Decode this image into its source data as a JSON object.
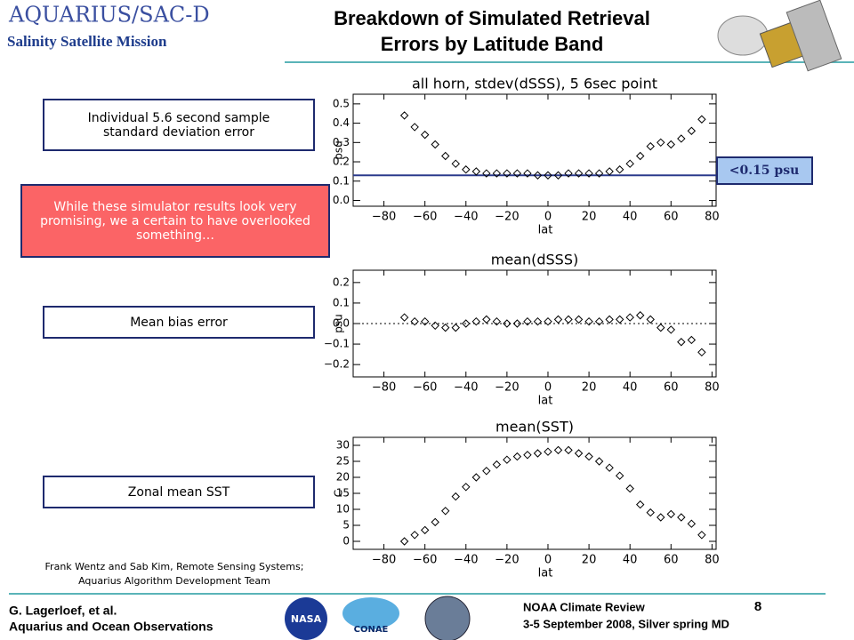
{
  "header": {
    "logo": "AQUARIUS/SAC-D",
    "mission": "Salinity Satellite Mission",
    "title": [
      "Breakdown of Simulated Retrieval",
      "Errors by Latitude Band"
    ]
  },
  "boxes": [
    "Individual 5.6 second sample standard deviation error",
    "While these simulator results look very promising, we a certain to have overlooked something…",
    "Mean bias error",
    "Zonal mean SST"
  ],
  "credit": [
    "Frank Wentz and Sab Kim, Remote Sensing Systems;",
    "Aquarius Algorithm Development Team"
  ],
  "footer": {
    "author": [
      "G. Lagerloef, et al.",
      "Aquarius and Ocean Observations"
    ],
    "event": [
      "NOAA Climate Review",
      "3-5 September 2008, Silver spring MD"
    ],
    "page": "8",
    "logos": [
      "NASA",
      "CONAE"
    ]
  },
  "chart_data": [
    {
      "type": "scatter",
      "title": "all horn, stdev(dSSS), 5 6sec point",
      "xlabel": "lat",
      "ylabel": "psu",
      "x": [
        -70,
        -65,
        -60,
        -55,
        -50,
        -45,
        -40,
        -35,
        -30,
        -25,
        -20,
        -15,
        -10,
        -5,
        0,
        5,
        10,
        15,
        20,
        25,
        30,
        35,
        40,
        45,
        50,
        55,
        60,
        65,
        70,
        75
      ],
      "values": [
        0.44,
        0.38,
        0.34,
        0.29,
        0.23,
        0.19,
        0.16,
        0.15,
        0.14,
        0.14,
        0.14,
        0.14,
        0.14,
        0.13,
        0.13,
        0.13,
        0.14,
        0.14,
        0.14,
        0.14,
        0.15,
        0.16,
        0.19,
        0.23,
        0.28,
        0.3,
        0.29,
        0.32,
        0.36,
        0.42
      ],
      "xlim": [
        -95,
        82
      ],
      "xticks": [
        {
          "value": -80,
          "label": "−80"
        },
        {
          "value": -60,
          "label": "−60"
        },
        {
          "value": -40,
          "label": "−40"
        },
        {
          "value": -20,
          "label": "−20"
        },
        0,
        20,
        40,
        60,
        80
      ],
      "ylim": [
        -0.03,
        0.55
      ],
      "yticks": [
        {
          "value": 0,
          "label": "0.0"
        },
        0.1,
        0.2,
        0.3,
        0.4,
        0.5
      ],
      "reference_line": {
        "value": 0.13,
        "color": "#2b3a8c",
        "style": "solid"
      },
      "annotation": "<0.15 psu"
    },
    {
      "type": "scatter",
      "title": "mean(dSSS)",
      "xlabel": "lat",
      "ylabel": "psu",
      "x": [
        -70,
        -65,
        -60,
        -55,
        -50,
        -45,
        -40,
        -35,
        -30,
        -25,
        -20,
        -15,
        -10,
        -5,
        0,
        5,
        10,
        15,
        20,
        25,
        30,
        35,
        40,
        45,
        50,
        55,
        60,
        65,
        70,
        75
      ],
      "values": [
        0.03,
        0.01,
        0.01,
        -0.01,
        -0.02,
        -0.02,
        0.0,
        0.01,
        0.02,
        0.01,
        0.0,
        0.0,
        0.01,
        0.01,
        0.01,
        0.02,
        0.02,
        0.02,
        0.01,
        0.01,
        0.02,
        0.02,
        0.03,
        0.04,
        0.02,
        -0.02,
        -0.03,
        -0.09,
        -0.08,
        -0.14
      ],
      "xlim": [
        -95,
        82
      ],
      "xticks": [
        {
          "value": -80,
          "label": "−80"
        },
        {
          "value": -60,
          "label": "−60"
        },
        {
          "value": -40,
          "label": "−40"
        },
        {
          "value": -20,
          "label": "−20"
        },
        0,
        20,
        40,
        60,
        80
      ],
      "ylim": [
        -0.26,
        0.26
      ],
      "yticks": [
        {
          "value": -0.2,
          "label": "−0.2"
        },
        {
          "value": -0.1,
          "label": "−0.1"
        },
        {
          "value": 0,
          "label": "0.0"
        },
        0.1,
        0.2
      ],
      "reference_line": {
        "value": 0,
        "color": "#000000",
        "style": "dotted"
      }
    },
    {
      "type": "scatter",
      "title": "mean(SST)",
      "xlabel": "lat",
      "ylabel": "C",
      "x": [
        -70,
        -65,
        -60,
        -55,
        -50,
        -45,
        -40,
        -35,
        -30,
        -25,
        -20,
        -15,
        -10,
        -5,
        0,
        5,
        10,
        15,
        20,
        25,
        30,
        35,
        40,
        45,
        50,
        55,
        60,
        65,
        70,
        75
      ],
      "values": [
        0,
        2,
        3.5,
        6,
        9.5,
        14,
        17,
        20,
        22,
        24,
        25.5,
        26.5,
        27,
        27.5,
        28,
        28.5,
        28.5,
        27.5,
        26.5,
        25,
        23,
        20.5,
        16.5,
        11.5,
        9,
        7.5,
        8.5,
        7.5,
        5.5,
        2
      ],
      "xlim": [
        -95,
        82
      ],
      "xticks": [
        {
          "value": -80,
          "label": "−80"
        },
        {
          "value": -60,
          "label": "−60"
        },
        {
          "value": -40,
          "label": "−40"
        },
        {
          "value": -20,
          "label": "−20"
        },
        0,
        20,
        40,
        60,
        80
      ],
      "ylim": [
        -2.5,
        32.5
      ],
      "yticks": [
        0,
        5,
        10,
        15,
        20,
        25,
        30
      ]
    }
  ]
}
